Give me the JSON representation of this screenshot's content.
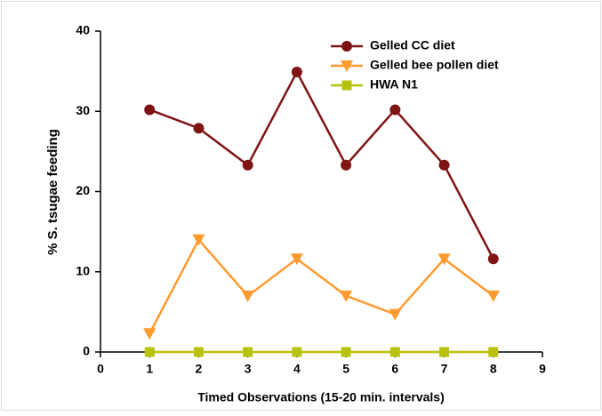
{
  "chart_data": {
    "type": "line",
    "xlabel": "Timed Observations (15-20 min. intervals)",
    "ylabel": "% S. tsugae feeding",
    "x": [
      1,
      2,
      3,
      4,
      5,
      6,
      7,
      8
    ],
    "series": [
      {
        "name": "Gelled CC diet",
        "color": "#7f1414",
        "marker": "circle",
        "values": [
          30.2,
          27.9,
          23.3,
          34.9,
          23.3,
          30.2,
          23.3,
          11.6
        ]
      },
      {
        "name": "Gelled bee pollen diet",
        "color": "#ff9a2e",
        "marker": "triangle-down",
        "values": [
          2.3,
          14.0,
          7.0,
          11.6,
          7.0,
          4.7,
          11.6,
          7.0
        ]
      },
      {
        "name": "HWA N1",
        "color": "#b8c20a",
        "marker": "square",
        "values": [
          0,
          0,
          0,
          0,
          0,
          0,
          0,
          0
        ]
      }
    ],
    "xlim": [
      0,
      9
    ],
    "xticks": [
      0,
      1,
      2,
      3,
      4,
      5,
      6,
      7,
      8,
      9
    ],
    "ylim": [
      0,
      40
    ],
    "yticks": [
      0,
      10,
      20,
      30,
      40
    ],
    "grid": false,
    "legend": "upper right"
  }
}
